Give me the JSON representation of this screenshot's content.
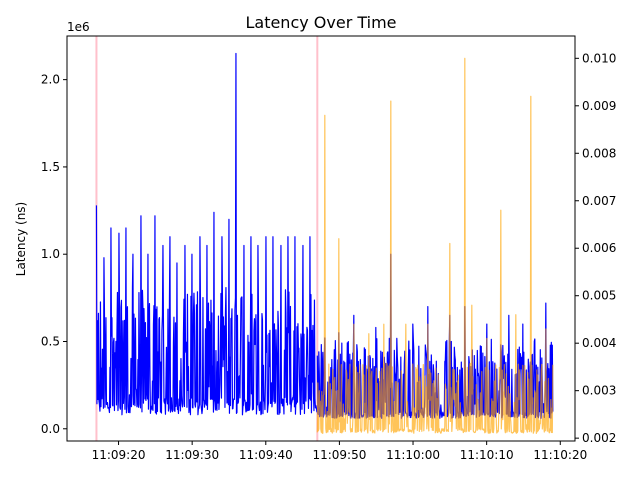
{
  "chart_data": {
    "type": "line",
    "title": "Latency Over Time",
    "ylabel": "Latency (ns)",
    "y_offset_label": "1e6",
    "xlabel": "",
    "x_tick_labels": [
      "11:09:20",
      "11:09:30",
      "11:09:40",
      "11:09:50",
      "11:10:00",
      "11:10:10",
      "11:10:20"
    ],
    "y_tick_labels": [
      "0.0",
      "0.5",
      "1.0",
      "1.5",
      "2.0"
    ],
    "y2_tick_labels": [
      "0.002",
      "0.003",
      "0.004",
      "0.005",
      "0.006",
      "0.007",
      "0.008",
      "0.009",
      "0.010"
    ],
    "xlim": [
      "11:09:13",
      "11:10:22"
    ],
    "ylim": [
      -0.07,
      2.25
    ],
    "y2lim": [
      0.00194,
      0.01047
    ],
    "grid": false,
    "colors": {
      "primary": "#0000ff",
      "secondary": "#ffa500",
      "marker_line": "#ffc0cb",
      "overlap": "#9a6a6a"
    },
    "vertical_markers": [
      "11:09:17",
      "11:09:47"
    ],
    "series": [
      {
        "axis": "left",
        "color": "#0000ff",
        "segments": [
          {
            "start": "11:09:17",
            "end": "11:09:47",
            "low": 0.08,
            "mid_low": 0.18,
            "high": 0.82,
            "spikes": [
              [
                "11:09:17",
                1.28
              ],
              [
                "11:09:18",
                0.98
              ],
              [
                "11:09:19",
                1.15
              ],
              [
                "11:09:20",
                1.12
              ],
              [
                "11:09:21",
                1.15
              ],
              [
                "11:09:22",
                1.0
              ],
              [
                "11:09:23",
                1.22
              ],
              [
                "11:09:24",
                1.0
              ],
              [
                "11:09:25",
                1.22
              ],
              [
                "11:09:26",
                1.05
              ],
              [
                "11:09:27",
                1.1
              ],
              [
                "11:09:28",
                0.95
              ],
              [
                "11:09:29",
                1.05
              ],
              [
                "11:09:30",
                1.0
              ],
              [
                "11:09:31",
                1.1
              ],
              [
                "11:09:32",
                1.05
              ],
              [
                "11:09:33",
                1.24
              ],
              [
                "11:09:34",
                1.1
              ],
              [
                "11:09:35",
                1.2
              ],
              [
                "11:09:36",
                2.15
              ],
              [
                "11:09:37",
                1.05
              ],
              [
                "11:09:38",
                1.1
              ],
              [
                "11:09:39",
                1.05
              ],
              [
                "11:09:40",
                1.1
              ],
              [
                "11:09:41",
                1.1
              ],
              [
                "11:09:42",
                1.05
              ],
              [
                "11:09:43",
                1.1
              ],
              [
                "11:09:44",
                1.1
              ],
              [
                "11:09:45",
                1.05
              ],
              [
                "11:09:46",
                1.1
              ]
            ]
          },
          {
            "start": "11:09:47",
            "end": "11:10:19",
            "low": 0.06,
            "mid_low": 0.1,
            "high": 0.52,
            "spikes": [
              [
                "11:09:48",
                0.52
              ],
              [
                "11:09:50",
                0.55
              ],
              [
                "11:09:52",
                0.65
              ],
              [
                "11:09:55",
                0.58
              ],
              [
                "11:09:57",
                1.0
              ],
              [
                "11:10:00",
                0.6
              ],
              [
                "11:10:02",
                0.7
              ],
              [
                "11:10:05",
                0.65
              ],
              [
                "11:10:07",
                0.7
              ],
              [
                "11:10:10",
                0.6
              ],
              [
                "11:10:13",
                0.65
              ],
              [
                "11:10:15",
                0.6
              ],
              [
                "11:10:18",
                0.72
              ]
            ]
          }
        ]
      },
      {
        "axis": "right",
        "color": "#ffa500",
        "segments": [
          {
            "start": "11:09:47",
            "end": "11:10:19",
            "low": 0.0021,
            "mid_low": 0.0022,
            "high": 0.0036,
            "spikes": [
              [
                "11:09:48",
                0.0088
              ],
              [
                "11:09:50",
                0.0062
              ],
              [
                "11:09:52",
                0.0044
              ],
              [
                "11:09:54",
                0.0042
              ],
              [
                "11:09:56",
                0.0044
              ],
              [
                "11:09:57",
                0.0091
              ],
              [
                "11:09:59",
                0.0044
              ],
              [
                "11:10:02",
                0.0044
              ],
              [
                "11:10:05",
                0.0061
              ],
              [
                "11:10:07",
                0.01
              ],
              [
                "11:10:08",
                0.0048
              ],
              [
                "11:10:10",
                0.0041
              ],
              [
                "11:10:12",
                0.0068
              ],
              [
                "11:10:14",
                0.0046
              ],
              [
                "11:10:16",
                0.0092
              ],
              [
                "11:10:18",
                0.0043
              ],
              [
                "11:10:20",
                0.0022
              ]
            ]
          }
        ]
      }
    ]
  }
}
